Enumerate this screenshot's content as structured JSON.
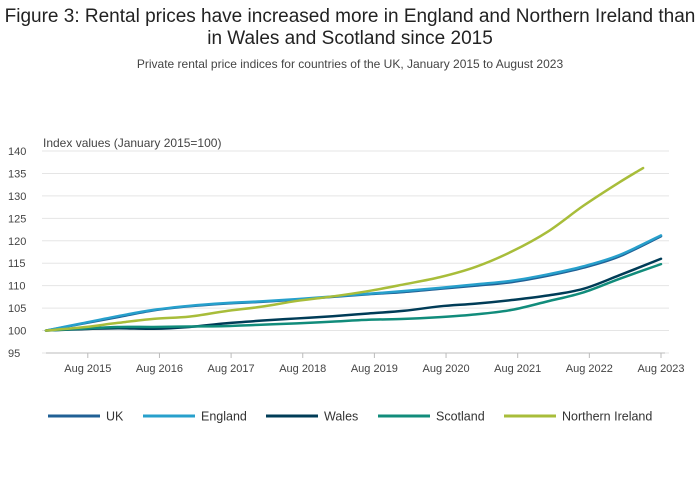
{
  "title": "Figure 3: Rental prices have increased more in England and Northern Ireland than in Wales and Scotland since 2015",
  "subtitle": "Private rental price indices for countries of the UK, January 2015 to August 2023",
  "chart_data": {
    "type": "line",
    "ylabel": "Index values (January 2015=100)",
    "ylim": [
      95,
      140
    ],
    "yticks": [
      95,
      100,
      105,
      110,
      115,
      120,
      125,
      130,
      135,
      140
    ],
    "xrange": [
      "2015-01",
      "2023-08"
    ],
    "xtick_labels": [
      "Aug 2015",
      "Aug 2016",
      "Aug 2017",
      "Aug 2018",
      "Aug 2019",
      "Aug 2020",
      "Aug 2021",
      "Aug 2022",
      "Aug 2023"
    ],
    "xtick_dates": [
      "2015-08",
      "2016-08",
      "2017-08",
      "2018-08",
      "2019-08",
      "2020-08",
      "2021-08",
      "2022-08",
      "2023-08"
    ],
    "grid": true,
    "legend_position": "bottom",
    "series": [
      {
        "name": "UK",
        "color": "#206095",
        "dates": [
          "2015-01",
          "2015-07",
          "2016-01",
          "2016-07",
          "2017-01",
          "2017-07",
          "2018-01",
          "2018-07",
          "2019-01",
          "2019-07",
          "2020-01",
          "2020-07",
          "2021-01",
          "2021-07",
          "2022-01",
          "2022-07",
          "2023-01",
          "2023-08"
        ],
        "values": [
          100.0,
          101.5,
          103.0,
          104.5,
          105.4,
          106.0,
          106.4,
          106.9,
          107.5,
          108.1,
          108.6,
          109.3,
          110.0,
          110.8,
          112.2,
          114.0,
          116.5,
          121.0
        ]
      },
      {
        "name": "England",
        "color": "#27A0CC",
        "dates": [
          "2015-01",
          "2015-07",
          "2016-01",
          "2016-07",
          "2017-01",
          "2017-07",
          "2018-01",
          "2018-07",
          "2019-01",
          "2019-07",
          "2020-01",
          "2020-07",
          "2021-01",
          "2021-07",
          "2022-01",
          "2022-07",
          "2023-01",
          "2023-08"
        ],
        "values": [
          100.0,
          101.6,
          103.2,
          104.6,
          105.5,
          106.1,
          106.5,
          107.0,
          107.6,
          108.2,
          108.8,
          109.5,
          110.3,
          111.1,
          112.5,
          114.3,
          116.8,
          121.2
        ]
      },
      {
        "name": "Wales",
        "color": "#003C57",
        "dates": [
          "2015-01",
          "2015-07",
          "2016-01",
          "2016-07",
          "2017-01",
          "2017-07",
          "2018-01",
          "2018-07",
          "2019-01",
          "2019-07",
          "2020-01",
          "2020-07",
          "2021-01",
          "2021-07",
          "2022-01",
          "2022-07",
          "2023-01",
          "2023-08"
        ],
        "values": [
          100.0,
          100.3,
          100.5,
          100.4,
          100.8,
          101.6,
          102.2,
          102.7,
          103.2,
          103.8,
          104.4,
          105.4,
          106.0,
          106.8,
          107.8,
          109.3,
          112.3,
          116.0
        ]
      },
      {
        "name": "Scotland",
        "color": "#118C7B",
        "dates": [
          "2015-01",
          "2015-07",
          "2016-01",
          "2016-07",
          "2017-01",
          "2017-07",
          "2018-01",
          "2018-07",
          "2019-01",
          "2019-07",
          "2020-01",
          "2020-07",
          "2021-01",
          "2021-07",
          "2022-01",
          "2022-07",
          "2023-01",
          "2023-08"
        ],
        "values": [
          100.0,
          100.4,
          100.8,
          100.8,
          100.9,
          101.0,
          101.3,
          101.6,
          102.0,
          102.4,
          102.6,
          103.0,
          103.6,
          104.6,
          106.5,
          108.5,
          111.5,
          114.8
        ]
      },
      {
        "name": "Northern Ireland",
        "color": "#A8BD3A",
        "dates": [
          "2015-01",
          "2015-07",
          "2016-01",
          "2016-07",
          "2017-01",
          "2017-07",
          "2018-01",
          "2018-07",
          "2019-01",
          "2019-07",
          "2020-01",
          "2020-07",
          "2021-01",
          "2021-07",
          "2022-01",
          "2022-07",
          "2023-01",
          "2023-05"
        ],
        "values": [
          100.0,
          100.7,
          101.7,
          102.6,
          103.1,
          104.3,
          105.3,
          106.6,
          107.6,
          108.8,
          110.3,
          111.9,
          114.2,
          117.6,
          122.0,
          127.8,
          133.0,
          136.2
        ]
      }
    ]
  }
}
